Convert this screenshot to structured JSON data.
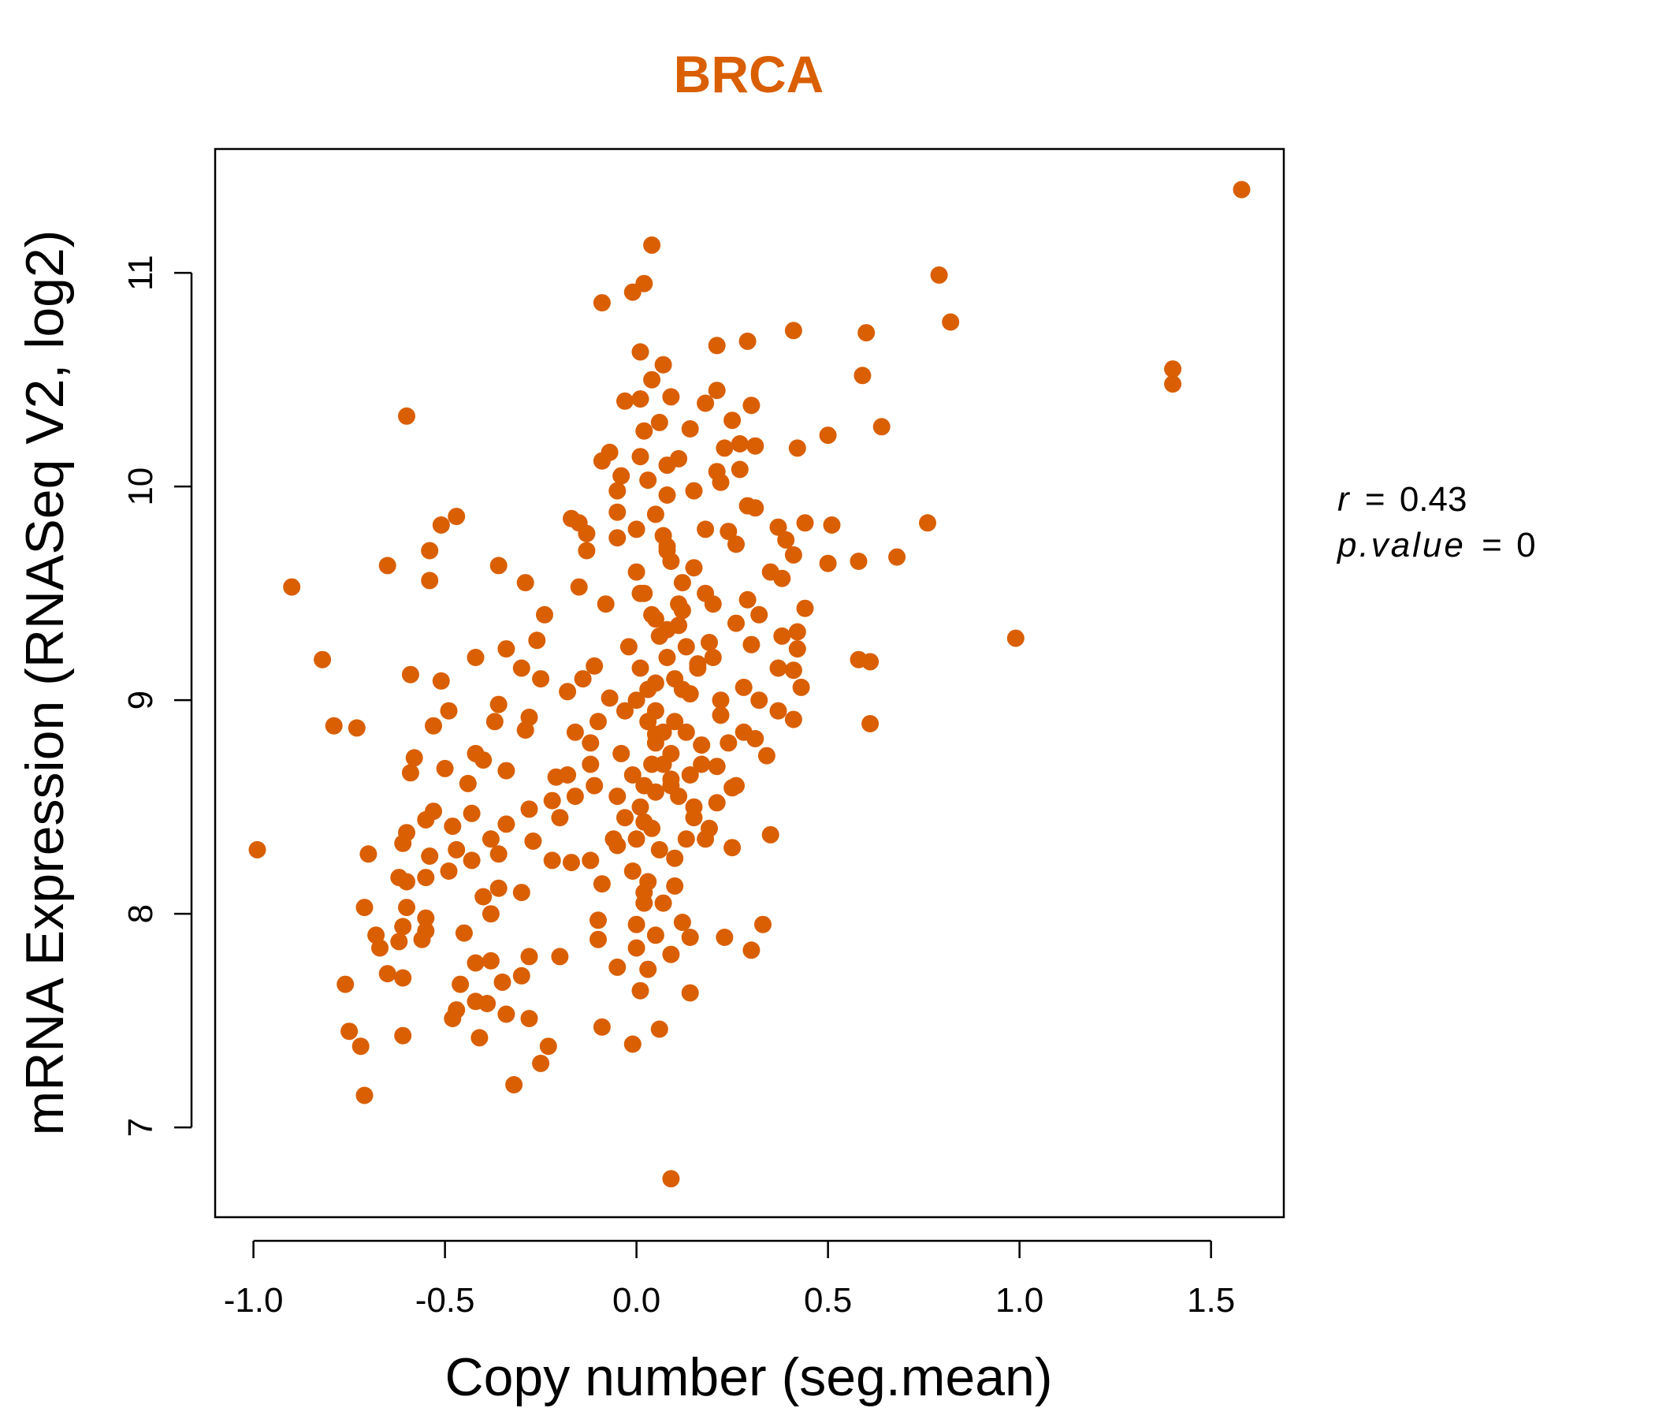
{
  "chart_data": {
    "type": "scatter",
    "title": "BRCA",
    "xlabel": "Copy number (seg.mean)",
    "ylabel": "mRNA Expression (RNASeq V2, log2)",
    "xlim": [
      -1.1,
      1.69
    ],
    "ylim": [
      6.58,
      11.58
    ],
    "x_ticks": [
      -1.0,
      -0.5,
      0.0,
      0.5,
      1.0,
      1.5
    ],
    "x_tick_labels": [
      "-1.0",
      "-0.5",
      "0.0",
      "0.5",
      "1.0",
      "1.5"
    ],
    "y_ticks": [
      7,
      8,
      9,
      10,
      11
    ],
    "y_tick_labels": [
      "7",
      "8",
      "9",
      "10",
      "11"
    ],
    "point_color": "#D95F02",
    "grid": false,
    "legend": "none",
    "annotation": {
      "r_symbol": "r",
      "r_eq": "=",
      "r_value": "0.43",
      "p_symbol": "p.value",
      "p_eq": "=",
      "p_value": "0"
    },
    "points": [
      [
        1.58,
        11.39
      ],
      [
        0.04,
        11.13
      ],
      [
        0.79,
        10.99
      ],
      [
        0.02,
        10.95
      ],
      [
        -0.01,
        10.91
      ],
      [
        -0.09,
        10.86
      ],
      [
        0.82,
        10.77
      ],
      [
        0.41,
        10.73
      ],
      [
        0.6,
        10.72
      ],
      [
        0.29,
        10.68
      ],
      [
        0.21,
        10.66
      ],
      [
        0.01,
        10.63
      ],
      [
        0.07,
        10.57
      ],
      [
        1.4,
        10.55
      ],
      [
        0.59,
        10.52
      ],
      [
        0.04,
        10.5
      ],
      [
        1.4,
        10.48
      ],
      [
        0.21,
        10.45
      ],
      [
        0.09,
        10.42
      ],
      [
        -0.03,
        10.4
      ],
      [
        0.01,
        10.41
      ],
      [
        0.18,
        10.39
      ],
      [
        0.3,
        10.38
      ],
      [
        -0.6,
        10.33
      ],
      [
        0.06,
        10.3
      ],
      [
        0.25,
        10.31
      ],
      [
        0.64,
        10.28
      ],
      [
        0.14,
        10.27
      ],
      [
        0.02,
        10.26
      ],
      [
        0.5,
        10.24
      ],
      [
        0.27,
        10.2
      ],
      [
        0.31,
        10.19
      ],
      [
        0.42,
        10.18
      ],
      [
        0.23,
        10.18
      ],
      [
        -0.07,
        10.16
      ],
      [
        0.01,
        10.14
      ],
      [
        0.11,
        10.13
      ],
      [
        -0.09,
        10.12
      ],
      [
        0.08,
        10.1
      ],
      [
        0.27,
        10.08
      ],
      [
        0.21,
        10.07
      ],
      [
        -0.04,
        10.05
      ],
      [
        0.03,
        10.03
      ],
      [
        0.22,
        10.02
      ],
      [
        -0.05,
        9.98
      ],
      [
        0.15,
        9.98
      ],
      [
        0.08,
        9.96
      ],
      [
        0.29,
        9.91
      ],
      [
        0.31,
        9.9
      ],
      [
        -0.05,
        9.88
      ],
      [
        0.05,
        9.87
      ],
      [
        0.44,
        9.83
      ],
      [
        -0.17,
        9.85
      ],
      [
        -0.15,
        9.83
      ],
      [
        0.76,
        9.83
      ],
      [
        -0.51,
        9.82
      ],
      [
        -0.47,
        9.86
      ],
      [
        0.51,
        9.82
      ],
      [
        0.37,
        9.81
      ],
      [
        0.18,
        9.8
      ],
      [
        0.24,
        9.79
      ],
      [
        -0.13,
        9.78
      ],
      [
        0.07,
        9.77
      ],
      [
        -0.05,
        9.76
      ],
      [
        0.39,
        9.75
      ],
      [
        0.26,
        9.73
      ],
      [
        -0.13,
        9.7
      ],
      [
        -0.54,
        9.7
      ],
      [
        0.08,
        9.72
      ],
      [
        0.68,
        9.67
      ],
      [
        0.41,
        9.68
      ],
      [
        0.58,
        9.65
      ],
      [
        0.5,
        9.64
      ],
      [
        -0.36,
        9.63
      ],
      [
        -0.65,
        9.63
      ],
      [
        0.15,
        9.62
      ],
      [
        0.35,
        9.6
      ],
      [
        0.38,
        9.57
      ],
      [
        -0.54,
        9.56
      ],
      [
        -0.29,
        9.55
      ],
      [
        -0.15,
        9.53
      ],
      [
        -0.9,
        9.53
      ],
      [
        0.01,
        9.5
      ],
      [
        0.29,
        9.47
      ],
      [
        0.2,
        9.45
      ],
      [
        0.44,
        9.43
      ],
      [
        0.12,
        9.42
      ],
      [
        0.32,
        9.4
      ],
      [
        -0.24,
        9.4
      ],
      [
        0.05,
        9.38
      ],
      [
        0.26,
        9.36
      ],
      [
        0.08,
        9.33
      ],
      [
        0.42,
        9.32
      ],
      [
        0.99,
        9.29
      ],
      [
        0.38,
        9.3
      ],
      [
        -0.26,
        9.28
      ],
      [
        0.19,
        9.27
      ],
      [
        0.3,
        9.26
      ],
      [
        0.42,
        9.24
      ],
      [
        -0.34,
        9.24
      ],
      [
        -0.42,
        9.2
      ],
      [
        0.58,
        9.19
      ],
      [
        0.61,
        9.18
      ],
      [
        -0.82,
        9.19
      ],
      [
        0.16,
        9.17
      ],
      [
        -0.11,
        9.16
      ],
      [
        0.37,
        9.15
      ],
      [
        0.41,
        9.14
      ],
      [
        -0.3,
        9.15
      ],
      [
        -0.59,
        9.12
      ],
      [
        -0.25,
        9.1
      ],
      [
        0.05,
        9.08
      ],
      [
        -0.51,
        9.09
      ],
      [
        0.28,
        9.06
      ],
      [
        0.43,
        9.06
      ],
      [
        -0.18,
        9.04
      ],
      [
        0.14,
        9.03
      ],
      [
        -0.07,
        9.01
      ],
      [
        0.32,
        9.0
      ],
      [
        -0.36,
        8.98
      ],
      [
        -0.49,
        8.95
      ],
      [
        0.37,
        8.95
      ],
      [
        0.22,
        8.93
      ],
      [
        -0.28,
        8.92
      ],
      [
        0.41,
        8.91
      ],
      [
        0.1,
        8.9
      ],
      [
        -0.37,
        8.9
      ],
      [
        0.61,
        8.89
      ],
      [
        -0.53,
        8.88
      ],
      [
        -0.79,
        8.88
      ],
      [
        -0.73,
        8.87
      ],
      [
        -0.29,
        8.86
      ],
      [
        0.28,
        8.85
      ],
      [
        0.05,
        8.84
      ],
      [
        0.31,
        8.82
      ],
      [
        -0.12,
        8.8
      ],
      [
        0.17,
        8.79
      ],
      [
        -0.42,
        8.75
      ],
      [
        0.34,
        8.74
      ],
      [
        -0.58,
        8.73
      ],
      [
        -0.4,
        8.72
      ],
      [
        -0.12,
        8.7
      ],
      [
        0.21,
        8.69
      ],
      [
        -0.5,
        8.68
      ],
      [
        -0.34,
        8.67
      ],
      [
        -0.59,
        8.66
      ],
      [
        -0.21,
        8.64
      ],
      [
        0.09,
        8.63
      ],
      [
        -0.44,
        8.61
      ],
      [
        0.25,
        8.59
      ],
      [
        0.05,
        8.57
      ],
      [
        -0.16,
        8.55
      ],
      [
        -0.22,
        8.53
      ],
      [
        0.21,
        8.52
      ],
      [
        0.15,
        8.5
      ],
      [
        -0.28,
        8.49
      ],
      [
        -0.53,
        8.48
      ],
      [
        -0.43,
        8.47
      ],
      [
        -0.55,
        8.44
      ],
      [
        0.02,
        8.43
      ],
      [
        -0.34,
        8.42
      ],
      [
        -0.48,
        8.41
      ],
      [
        -0.6,
        8.38
      ],
      [
        0.35,
        8.37
      ],
      [
        0.18,
        8.35
      ],
      [
        -0.38,
        8.35
      ],
      [
        -0.27,
        8.34
      ],
      [
        -0.61,
        8.33
      ],
      [
        -0.05,
        8.32
      ],
      [
        0.25,
        8.31
      ],
      [
        -0.47,
        8.3
      ],
      [
        -0.99,
        8.3
      ],
      [
        -0.36,
        8.28
      ],
      [
        -0.7,
        8.28
      ],
      [
        -0.54,
        8.27
      ],
      [
        0.1,
        8.26
      ],
      [
        -0.43,
        8.25
      ],
      [
        -0.17,
        8.24
      ],
      [
        -0.49,
        8.2
      ],
      [
        -0.62,
        8.17
      ],
      [
        -0.55,
        8.17
      ],
      [
        -0.6,
        8.15
      ],
      [
        -0.09,
        8.14
      ],
      [
        0.1,
        8.13
      ],
      [
        -0.36,
        8.12
      ],
      [
        -0.3,
        8.1
      ],
      [
        -0.4,
        8.08
      ],
      [
        0.02,
        8.05
      ],
      [
        -0.71,
        8.03
      ],
      [
        -0.6,
        8.03
      ],
      [
        -0.38,
        8.0
      ],
      [
        -0.55,
        7.98
      ],
      [
        -0.1,
        7.97
      ],
      [
        0.12,
        7.96
      ],
      [
        0.33,
        7.95
      ],
      [
        -0.61,
        7.94
      ],
      [
        -0.55,
        7.92
      ],
      [
        -0.45,
        7.91
      ],
      [
        -0.68,
        7.9
      ],
      [
        0.14,
        7.89
      ],
      [
        0.23,
        7.89
      ],
      [
        -0.1,
        7.88
      ],
      [
        -0.56,
        7.88
      ],
      [
        -0.62,
        7.87
      ],
      [
        -0.67,
        7.84
      ],
      [
        0.0,
        7.84
      ],
      [
        0.3,
        7.83
      ],
      [
        -0.28,
        7.8
      ],
      [
        -0.2,
        7.8
      ],
      [
        0.09,
        7.81
      ],
      [
        -0.42,
        7.77
      ],
      [
        -0.38,
        7.78
      ],
      [
        -0.05,
        7.75
      ],
      [
        0.03,
        7.74
      ],
      [
        -0.3,
        7.71
      ],
      [
        -0.65,
        7.72
      ],
      [
        -0.61,
        7.7
      ],
      [
        -0.35,
        7.68
      ],
      [
        -0.46,
        7.67
      ],
      [
        -0.76,
        7.67
      ],
      [
        0.01,
        7.64
      ],
      [
        0.14,
        7.63
      ],
      [
        -0.42,
        7.59
      ],
      [
        -0.39,
        7.58
      ],
      [
        -0.47,
        7.55
      ],
      [
        -0.34,
        7.53
      ],
      [
        -0.48,
        7.51
      ],
      [
        -0.28,
        7.51
      ],
      [
        -0.09,
        7.47
      ],
      [
        0.06,
        7.46
      ],
      [
        -0.75,
        7.45
      ],
      [
        -0.61,
        7.43
      ],
      [
        -0.41,
        7.42
      ],
      [
        -0.23,
        7.38
      ],
      [
        -0.01,
        7.39
      ],
      [
        -0.72,
        7.38
      ],
      [
        -0.25,
        7.3
      ],
      [
        -0.32,
        7.2
      ],
      [
        -0.71,
        7.15
      ],
      [
        0.09,
        6.76
      ],
      [
        0.0,
        9.6
      ],
      [
        0.02,
        9.5
      ],
      [
        0.04,
        9.4
      ],
      [
        0.06,
        9.3
      ],
      [
        0.08,
        9.2
      ],
      [
        0.1,
        9.1
      ],
      [
        0.0,
        9.0
      ],
      [
        0.03,
        8.9
      ],
      [
        0.05,
        8.8
      ],
      [
        0.07,
        8.7
      ],
      [
        0.09,
        8.6
      ],
      [
        0.01,
        8.5
      ],
      [
        0.04,
        8.4
      ],
      [
        0.06,
        8.3
      ],
      [
        -0.01,
        8.2
      ],
      [
        0.02,
        8.1
      ],
      [
        0.11,
        9.35
      ],
      [
        0.12,
        9.05
      ],
      [
        0.13,
        8.85
      ],
      [
        0.14,
        8.65
      ],
      [
        0.15,
        8.45
      ],
      [
        -0.02,
        9.25
      ],
      [
        -0.03,
        8.95
      ],
      [
        -0.04,
        8.75
      ],
      [
        -0.05,
        8.55
      ],
      [
        -0.06,
        8.35
      ],
      [
        0.0,
        9.8
      ],
      [
        0.08,
        9.7
      ],
      [
        0.12,
        9.55
      ],
      [
        -0.08,
        9.45
      ],
      [
        0.16,
        9.15
      ],
      [
        -0.1,
        8.9
      ],
      [
        0.17,
        8.7
      ],
      [
        -0.11,
        8.6
      ],
      [
        0.19,
        8.4
      ],
      [
        -0.12,
        8.25
      ],
      [
        0.03,
        8.15
      ],
      [
        0.07,
        8.05
      ],
      [
        0.0,
        7.95
      ],
      [
        0.05,
        7.9
      ],
      [
        0.18,
        9.5
      ],
      [
        0.2,
        9.2
      ],
      [
        0.22,
        9.0
      ],
      [
        0.24,
        8.8
      ],
      [
        0.26,
        8.6
      ],
      [
        -0.14,
        9.1
      ],
      [
        -0.16,
        8.85
      ],
      [
        -0.18,
        8.65
      ],
      [
        -0.2,
        8.45
      ],
      [
        -0.22,
        8.25
      ],
      [
        0.09,
        9.65
      ],
      [
        0.11,
        9.45
      ],
      [
        0.13,
        9.25
      ],
      [
        0.01,
        9.15
      ],
      [
        0.03,
        9.05
      ],
      [
        0.05,
        8.95
      ],
      [
        0.07,
        8.85
      ],
      [
        0.09,
        8.75
      ],
      [
        0.11,
        8.55
      ],
      [
        0.13,
        8.35
      ],
      [
        -0.01,
        8.65
      ],
      [
        -0.03,
        8.45
      ],
      [
        0.0,
        8.35
      ],
      [
        0.02,
        8.6
      ],
      [
        0.04,
        8.7
      ]
    ]
  }
}
